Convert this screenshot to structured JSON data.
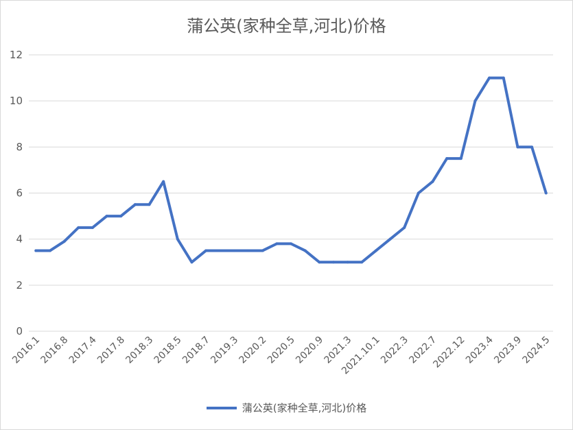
{
  "chart_data": {
    "type": "line",
    "title": "蒲公英(家种全草,河北)价格",
    "xlabel": "",
    "ylabel": "",
    "ylim": [
      0,
      12
    ],
    "yticks": [
      "0",
      "2",
      "4",
      "6",
      "8",
      "10",
      "12"
    ],
    "grid": true,
    "legend_position": "bottom",
    "x_tick_labels": [
      "2016.1",
      "2016.8",
      "2017.4",
      "2017.8",
      "2018.3",
      "2018.5",
      "2018.7",
      "2019.3",
      "2020.2",
      "2020.5",
      "2020.9",
      "2021.3",
      "2021.10.1",
      "2022.3",
      "2022.7",
      "2022.12",
      "2023.4",
      "2023.9",
      "2024.5"
    ],
    "series": [
      {
        "name": "蒲公英(家种全草,河北)价格",
        "color": "#4472c4",
        "values": [
          3.5,
          3.5,
          3.9,
          4.5,
          4.5,
          5,
          5,
          5.5,
          5.5,
          6.5,
          4,
          3,
          3.5,
          3.5,
          3.5,
          3.5,
          3.5,
          3.8,
          3.8,
          3.5,
          3,
          3,
          3,
          3,
          3.5,
          4,
          4.5,
          6,
          6.5,
          7.5,
          7.5,
          10,
          11,
          11,
          8,
          8,
          6
        ]
      }
    ]
  }
}
